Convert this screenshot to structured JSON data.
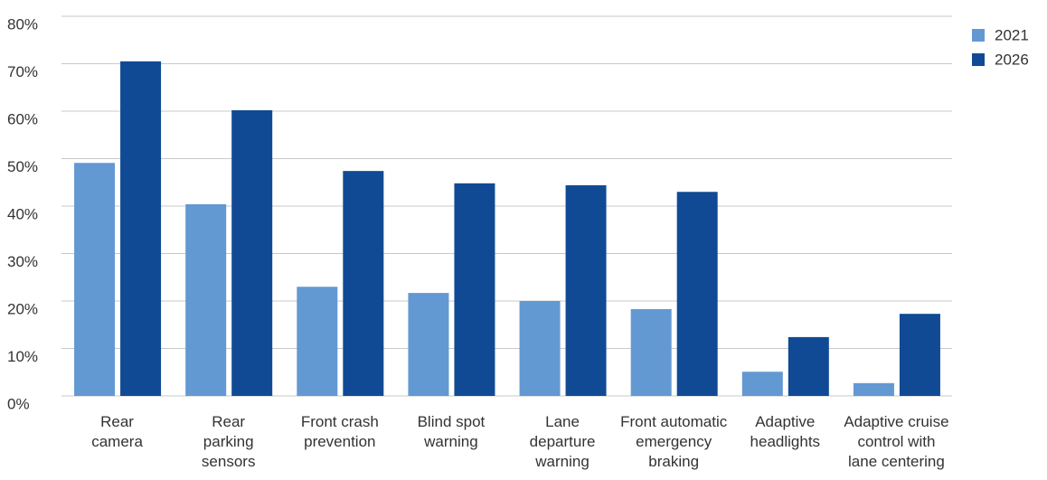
{
  "chart_data": {
    "type": "bar",
    "categories": [
      "Rear\ncamera",
      "Rear\nparking\nsensors",
      "Front crash\nprevention",
      "Blind spot\nwarning",
      "Lane\ndeparture\nwarning",
      "Front automatic\nemergency\nbraking",
      "Adaptive\nheadlights",
      "Adaptive cruise\ncontrol with\nlane centering"
    ],
    "series": [
      {
        "name": "2021",
        "color": "#6399d2",
        "values": [
          49.1,
          40.4,
          23.0,
          21.7,
          20.0,
          18.3,
          5.1,
          2.7
        ]
      },
      {
        "name": "2026",
        "color": "#114a94",
        "values": [
          70.5,
          60.2,
          47.4,
          44.8,
          44.4,
          43.0,
          12.4,
          17.3
        ]
      }
    ],
    "ylim": [
      0,
      80
    ],
    "yticks": [
      {
        "value": 0,
        "label": "0%"
      },
      {
        "value": 10,
        "label": "10%"
      },
      {
        "value": 20,
        "label": "20%"
      },
      {
        "value": 30,
        "label": "30%"
      },
      {
        "value": 40,
        "label": "40%"
      },
      {
        "value": 50,
        "label": "50%"
      },
      {
        "value": 60,
        "label": "60%"
      },
      {
        "value": 70,
        "label": "70%"
      },
      {
        "value": 80,
        "label": "80%"
      }
    ],
    "grid": true
  }
}
